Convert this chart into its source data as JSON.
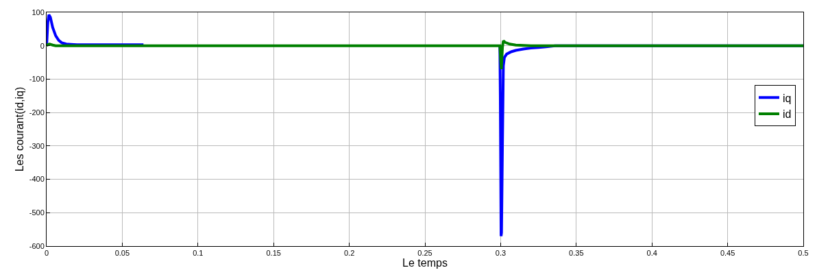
{
  "chart_data": {
    "type": "line",
    "xlabel": "Le temps",
    "ylabel": "Les courant(id,iq)",
    "xlim": [
      0,
      0.5
    ],
    "xticks": [
      0,
      0.05,
      0.1,
      0.15,
      0.2,
      0.25,
      0.3,
      0.35,
      0.4,
      0.45,
      0.5
    ],
    "ylim": [
      -600,
      100
    ],
    "yticks": [
      -600,
      -500,
      -400,
      -300,
      -200,
      -100,
      0,
      100
    ],
    "grid": true,
    "legend": "right",
    "line_style": "solid",
    "series": [
      {
        "name": "iq",
        "color": "#0000ff",
        "x": [
          0,
          0.0008,
          0.0015,
          0.0025,
          0.004,
          0.006,
          0.008,
          0.01,
          0.013,
          0.016,
          0.02,
          0.064,
          0.0645,
          0.2995,
          0.2998,
          0.3003,
          0.3006,
          0.3012,
          0.3018,
          0.3025,
          0.304,
          0.307,
          0.31,
          0.315,
          0.32,
          0.325,
          0.33,
          0.336,
          0.5
        ],
        "values": [
          0,
          70,
          93,
          85,
          55,
          30,
          16,
          9,
          5,
          4,
          3,
          3,
          null,
          0,
          -150,
          -570,
          -560,
          -300,
          -60,
          -35,
          -25,
          -18,
          -14,
          -10,
          -7,
          -5,
          -3,
          0,
          0
        ]
      },
      {
        "name": "id",
        "color": "#008000",
        "x": [
          0,
          0.001,
          0.002,
          0.004,
          0.006,
          0.01,
          0.2995,
          0.3,
          0.3005,
          0.3012,
          0.3018,
          0.303,
          0.306,
          0.31,
          0.315,
          0.32,
          0.5
        ],
        "values": [
          0,
          4,
          5,
          2,
          0,
          0,
          0,
          -40,
          -70,
          -5,
          15,
          10,
          5,
          2,
          1,
          0,
          0
        ]
      }
    ]
  }
}
